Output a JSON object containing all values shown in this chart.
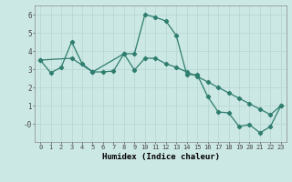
{
  "xlabel": "Humidex (Indice chaleur)",
  "line1_x": [
    0,
    1,
    2,
    3,
    4,
    5,
    6,
    7,
    8,
    9,
    10,
    11,
    12,
    13,
    14,
    15,
    16,
    17,
    18,
    19,
    20,
    21,
    22,
    23
  ],
  "line1_y": [
    3.5,
    2.8,
    3.1,
    4.5,
    3.3,
    2.85,
    2.85,
    2.9,
    3.85,
    3.85,
    6.0,
    5.85,
    5.65,
    4.85,
    2.7,
    2.7,
    1.5,
    0.65,
    0.6,
    -0.15,
    -0.05,
    -0.5,
    -0.15,
    1.0
  ],
  "line2_x": [
    0,
    3,
    5,
    8,
    9,
    10,
    11,
    12,
    13,
    14,
    15,
    16,
    17,
    18,
    19,
    20,
    21,
    22,
    23
  ],
  "line2_y": [
    3.5,
    3.6,
    2.85,
    3.85,
    2.95,
    3.6,
    3.6,
    3.3,
    3.1,
    2.85,
    2.6,
    2.3,
    2.0,
    1.7,
    1.4,
    1.1,
    0.8,
    0.5,
    1.0
  ],
  "xlim": [
    -0.5,
    23.5
  ],
  "ylim": [
    -1.0,
    6.5
  ],
  "color": "#2e7d6e",
  "bg_color": "#cce8e4",
  "grid_color": "#b8d8d4",
  "marker": "D",
  "markersize": 2.2,
  "linewidth": 0.9,
  "fontsize_ticks": 5.0,
  "fontsize_xlabel": 6.5
}
